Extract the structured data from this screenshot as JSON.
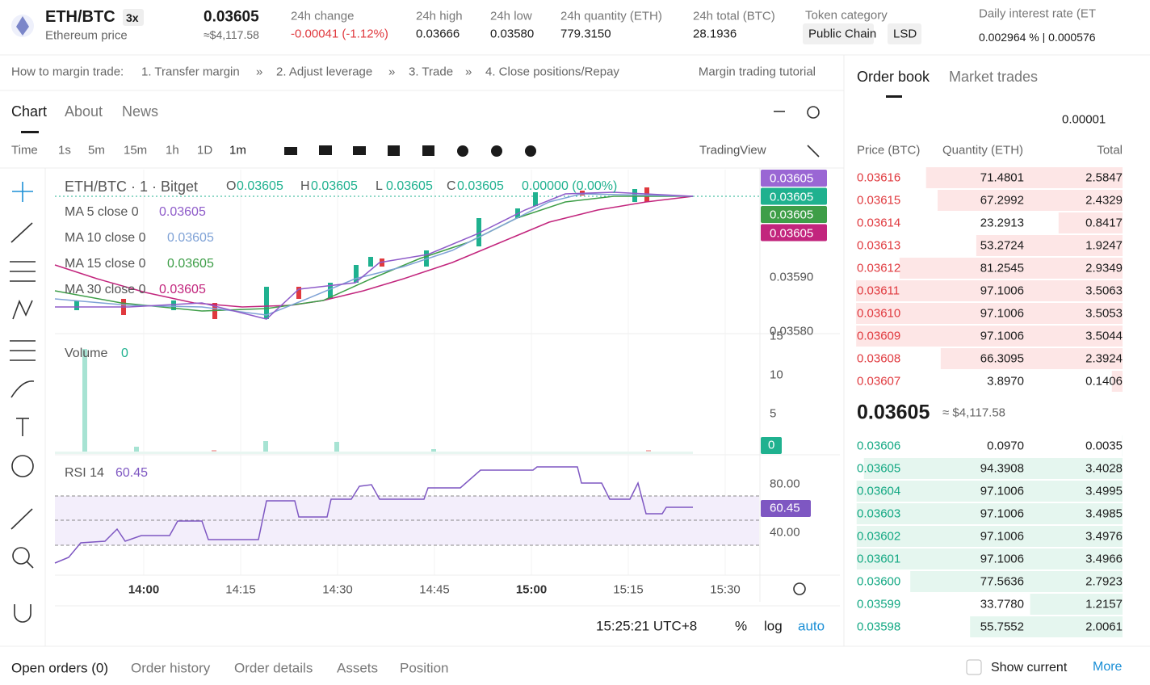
{
  "header": {
    "pair": "ETH/BTC",
    "leverage": "3x",
    "name": "Ethereum price",
    "price": "0.03605",
    "price_usd": "≈$4,117.58",
    "stats": [
      {
        "label": "24h change",
        "value": "-0.00041 (-1.12%)"
      },
      {
        "label": "24h high",
        "value": "0.03666"
      },
      {
        "label": "24h low",
        "value": "0.03580"
      },
      {
        "label": "24h quantity (ETH)",
        "value": "779.3150"
      },
      {
        "label": "24h total (BTC)",
        "value": "28.1936"
      }
    ],
    "token_category": {
      "label": "Token category",
      "tags": [
        "Public Chain",
        "LSD"
      ]
    },
    "interest": {
      "label": "Daily interest rate (ET",
      "value": "0.002964 % | 0.000576"
    }
  },
  "guide": {
    "label": "How to margin trade:",
    "steps": [
      "1. Transfer margin",
      "2. Adjust leverage",
      "3. Trade",
      "4. Close positions/Repay"
    ],
    "tutorial": "Margin trading tutorial"
  },
  "chart_tabs": [
    "Chart",
    "About",
    "News"
  ],
  "intervals": [
    "Time",
    "1s",
    "5m",
    "15m",
    "1h",
    "1D",
    "1m"
  ],
  "provider": "TradingView",
  "legend": {
    "symbol": "ETH/BTC · 1 · Bitget",
    "ohlc": [
      {
        "key": "O",
        "value": "0.03605"
      },
      {
        "key": "H",
        "value": "0.03605"
      },
      {
        "key": "L",
        "value": "0.03605"
      },
      {
        "key": "C",
        "value": "0.03605"
      }
    ],
    "change": "0.00000 (0.00%)",
    "mas": [
      {
        "label": "MA 5 close 0",
        "value": "0.03605",
        "color": "#8e5bc9"
      },
      {
        "label": "MA 10 close 0",
        "value": "0.03605",
        "color": "#7fa2d6"
      },
      {
        "label": "MA 15 close 0",
        "value": "0.03605",
        "color": "#3e9e48"
      },
      {
        "label": "MA 30 close 0",
        "value": "0.03605",
        "color": "#c2257d"
      }
    ]
  },
  "price_axis": {
    "badges": [
      {
        "value": "0.03605",
        "color": "#9a66d4"
      },
      {
        "value": "0.03605",
        "color": "#1fb18f"
      },
      {
        "value": "0.03605",
        "color": "#3e9e48"
      },
      {
        "value": "0.03605",
        "color": "#c2257d"
      }
    ],
    "ticks": [
      "0.03590",
      "0.03580"
    ]
  },
  "volume": {
    "label": "Volume",
    "value": "0",
    "ticks": [
      "15",
      "10",
      "5"
    ],
    "badge": "0"
  },
  "rsi": {
    "label": "RSI 14",
    "value": "60.45",
    "ticks": [
      "80.00",
      "40.00"
    ],
    "badge": "60.45"
  },
  "time_axis": [
    "14:00",
    "14:15",
    "14:30",
    "14:45",
    "15:00",
    "15:15",
    "15:30"
  ],
  "footer": {
    "clock": "15:25:21 UTC+8",
    "options": [
      "%",
      "log",
      "auto"
    ]
  },
  "bottom_tabs": [
    "Open orders (0)",
    "Order history",
    "Order details",
    "Assets",
    "Position"
  ],
  "show_current": "Show current",
  "more": "More",
  "order_book": {
    "tabs": [
      "Order book",
      "Market trades"
    ],
    "precision": "0.00001",
    "columns": [
      "Price (BTC)",
      "Quantity (ETH)",
      "Total"
    ],
    "asks": [
      {
        "price": "0.03616",
        "quantity": "71.4801",
        "total": 2.5847
      },
      {
        "price": "0.03615",
        "quantity": "67.2992",
        "total": 2.4329
      },
      {
        "price": "0.03614",
        "quantity": "23.2913",
        "total": 0.8417
      },
      {
        "price": "0.03613",
        "quantity": "53.2724",
        "total": 1.9247
      },
      {
        "price": "0.03612",
        "quantity": "81.2545",
        "total": 2.9349
      },
      {
        "price": "0.03611",
        "quantity": "97.1006",
        "total": 3.5063
      },
      {
        "price": "0.03610",
        "quantity": "97.1006",
        "total": 3.5053
      },
      {
        "price": "0.03609",
        "quantity": "97.1006",
        "total": 3.5044
      },
      {
        "price": "0.03608",
        "quantity": "66.3095",
        "total": 2.3924
      },
      {
        "price": "0.03607",
        "quantity": "3.8970",
        "total": 0.1406
      }
    ],
    "last_price": "0.03605",
    "last_price_usd": "≈ $4,117.58",
    "bids": [
      {
        "price": "0.03606",
        "quantity": "0.0970",
        "total": 0.0035
      },
      {
        "price": "0.03605",
        "quantity": "94.3908",
        "total": 3.4028
      },
      {
        "price": "0.03604",
        "quantity": "97.1006",
        "total": 3.4995
      },
      {
        "price": "0.03603",
        "quantity": "97.1006",
        "total": 3.4985
      },
      {
        "price": "0.03602",
        "quantity": "97.1006",
        "total": 3.4976
      },
      {
        "price": "0.03601",
        "quantity": "97.1006",
        "total": 3.4966
      },
      {
        "price": "0.03600",
        "quantity": "77.5636",
        "total": 2.7923
      },
      {
        "price": "0.03599",
        "quantity": "33.7780",
        "total": 1.2157
      },
      {
        "price": "0.03598",
        "quantity": "55.7552",
        "total": 2.0061
      }
    ]
  }
}
